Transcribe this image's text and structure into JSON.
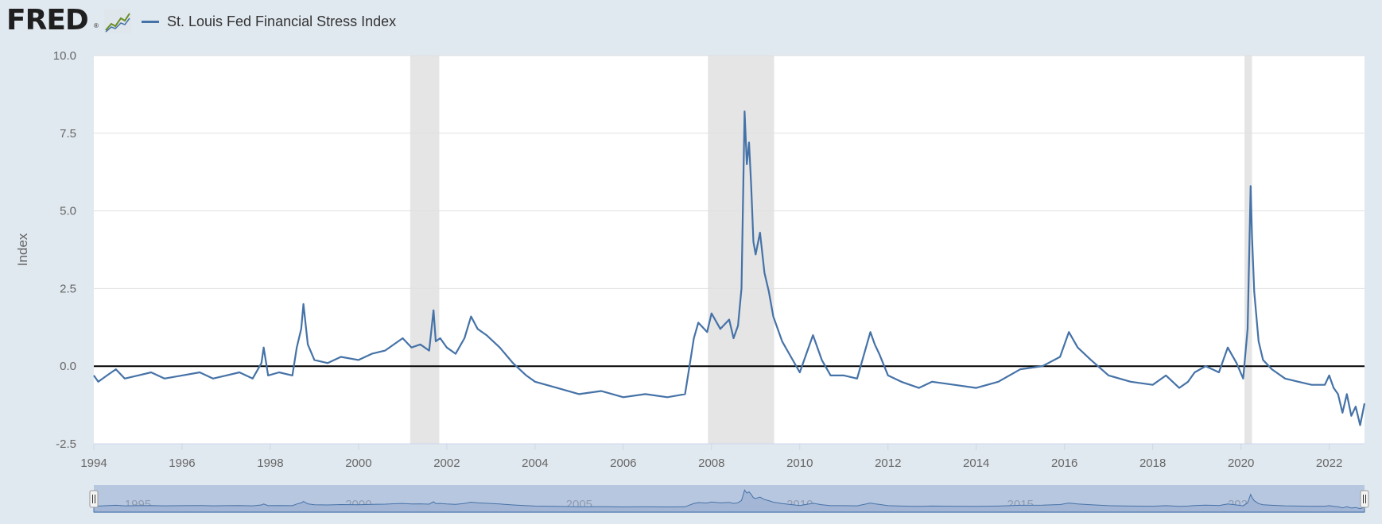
{
  "header": {
    "logo_text": "FRED",
    "logo_registered": "®",
    "logo_icon": "fred-line-chart-icon",
    "series_label": "St. Louis Fed Financial Stress Index"
  },
  "colors": {
    "series": "#4572a7",
    "page_background": "#e1e9f0",
    "plot_background": "#ffffff",
    "recession_shading": "#e5e5e5",
    "zero_line": "#000000",
    "navigator_fill": "#b8c7e0",
    "navigator_line": "#4572a7"
  },
  "chart_data": {
    "type": "line",
    "title": "",
    "xlabel": "",
    "ylabel": "Index",
    "xlim": [
      1994.0,
      2022.8
    ],
    "ylim": [
      -2.5,
      10.0
    ],
    "yticks": [
      "-2.5",
      "0.0",
      "2.5",
      "5.0",
      "7.5",
      "10.0"
    ],
    "ytick_values": [
      -2.5,
      0.0,
      2.5,
      5.0,
      7.5,
      10.0
    ],
    "xticks": [
      "1994",
      "1996",
      "1998",
      "2000",
      "2002",
      "2004",
      "2006",
      "2008",
      "2010",
      "2012",
      "2014",
      "2016",
      "2018",
      "2020",
      "2022"
    ],
    "xtick_values": [
      1994,
      1996,
      1998,
      2000,
      2002,
      2004,
      2006,
      2008,
      2010,
      2012,
      2014,
      2016,
      2018,
      2020,
      2022
    ],
    "grid": true,
    "legend_position": "top-left",
    "reference_line_y": 0.0,
    "recessions": [
      [
        2001.17,
        2001.83
      ],
      [
        2007.92,
        2009.42
      ],
      [
        2020.08,
        2020.25
      ]
    ],
    "series": [
      {
        "name": "St. Louis Fed Financial Stress Index",
        "x": [
          1994.0,
          1994.1,
          1994.3,
          1994.5,
          1994.7,
          1995.0,
          1995.3,
          1995.6,
          1996.0,
          1996.4,
          1996.7,
          1997.0,
          1997.3,
          1997.6,
          1997.8,
          1997.85,
          1997.95,
          1998.2,
          1998.5,
          1998.6,
          1998.7,
          1998.75,
          1998.85,
          1999.0,
          1999.3,
          1999.6,
          2000.0,
          2000.3,
          2000.6,
          2000.9,
          2001.0,
          2001.2,
          2001.4,
          2001.6,
          2001.7,
          2001.75,
          2001.85,
          2002.0,
          2002.2,
          2002.4,
          2002.55,
          2002.7,
          2002.9,
          2003.2,
          2003.5,
          2003.8,
          2004.0,
          2004.5,
          2005.0,
          2005.5,
          2006.0,
          2006.5,
          2007.0,
          2007.4,
          2007.5,
          2007.6,
          2007.7,
          2007.9,
          2008.0,
          2008.2,
          2008.4,
          2008.5,
          2008.6,
          2008.68,
          2008.75,
          2008.8,
          2008.85,
          2008.9,
          2008.95,
          2009.0,
          2009.1,
          2009.2,
          2009.3,
          2009.4,
          2009.6,
          2009.8,
          2010.0,
          2010.3,
          2010.5,
          2010.7,
          2011.0,
          2011.3,
          2011.6,
          2011.7,
          2011.8,
          2012.0,
          2012.3,
          2012.7,
          2013.0,
          2013.5,
          2014.0,
          2014.5,
          2015.0,
          2015.5,
          2015.9,
          2016.1,
          2016.3,
          2016.6,
          2017.0,
          2017.5,
          2018.0,
          2018.3,
          2018.6,
          2018.8,
          2018.95,
          2019.2,
          2019.5,
          2019.7,
          2019.9,
          2020.05,
          2020.15,
          2020.22,
          2020.25,
          2020.3,
          2020.4,
          2020.5,
          2020.7,
          2021.0,
          2021.3,
          2021.6,
          2021.9,
          2022.0,
          2022.1,
          2022.2,
          2022.3,
          2022.4,
          2022.5,
          2022.6,
          2022.7,
          2022.8
        ],
        "y": [
          -0.3,
          -0.5,
          -0.3,
          -0.1,
          -0.4,
          -0.3,
          -0.2,
          -0.4,
          -0.3,
          -0.2,
          -0.4,
          -0.3,
          -0.2,
          -0.4,
          0.1,
          0.6,
          -0.3,
          -0.2,
          -0.3,
          0.6,
          1.2,
          2.0,
          0.7,
          0.2,
          0.1,
          0.3,
          0.2,
          0.4,
          0.5,
          0.8,
          0.9,
          0.6,
          0.7,
          0.5,
          1.8,
          0.8,
          0.9,
          0.6,
          0.4,
          0.9,
          1.6,
          1.2,
          1.0,
          0.6,
          0.1,
          -0.3,
          -0.5,
          -0.7,
          -0.9,
          -0.8,
          -1.0,
          -0.9,
          -1.0,
          -0.9,
          0.0,
          0.9,
          1.4,
          1.1,
          1.7,
          1.2,
          1.5,
          0.9,
          1.3,
          2.5,
          8.2,
          6.5,
          7.2,
          5.8,
          4.0,
          3.6,
          4.3,
          3.0,
          2.4,
          1.6,
          0.8,
          0.3,
          -0.2,
          1.0,
          0.2,
          -0.3,
          -0.3,
          -0.4,
          1.1,
          0.7,
          0.4,
          -0.3,
          -0.5,
          -0.7,
          -0.5,
          -0.6,
          -0.7,
          -0.5,
          -0.1,
          0.0,
          0.3,
          1.1,
          0.6,
          0.2,
          -0.3,
          -0.5,
          -0.6,
          -0.3,
          -0.7,
          -0.5,
          -0.2,
          0.0,
          -0.2,
          0.6,
          0.1,
          -0.4,
          1.2,
          5.8,
          4.2,
          2.4,
          0.8,
          0.2,
          -0.1,
          -0.4,
          -0.5,
          -0.6,
          -0.6,
          -0.3,
          -0.7,
          -0.9,
          -1.5,
          -0.9,
          -1.6,
          -1.3,
          -1.9,
          -1.2
        ]
      }
    ]
  },
  "navigator": {
    "labels": [
      "1995",
      "2000",
      "2005",
      "2010",
      "2015",
      "2020"
    ],
    "label_values": [
      1995,
      2000,
      2005,
      2010,
      2015,
      2020
    ],
    "handle_icon": "drag-handle-icon"
  }
}
